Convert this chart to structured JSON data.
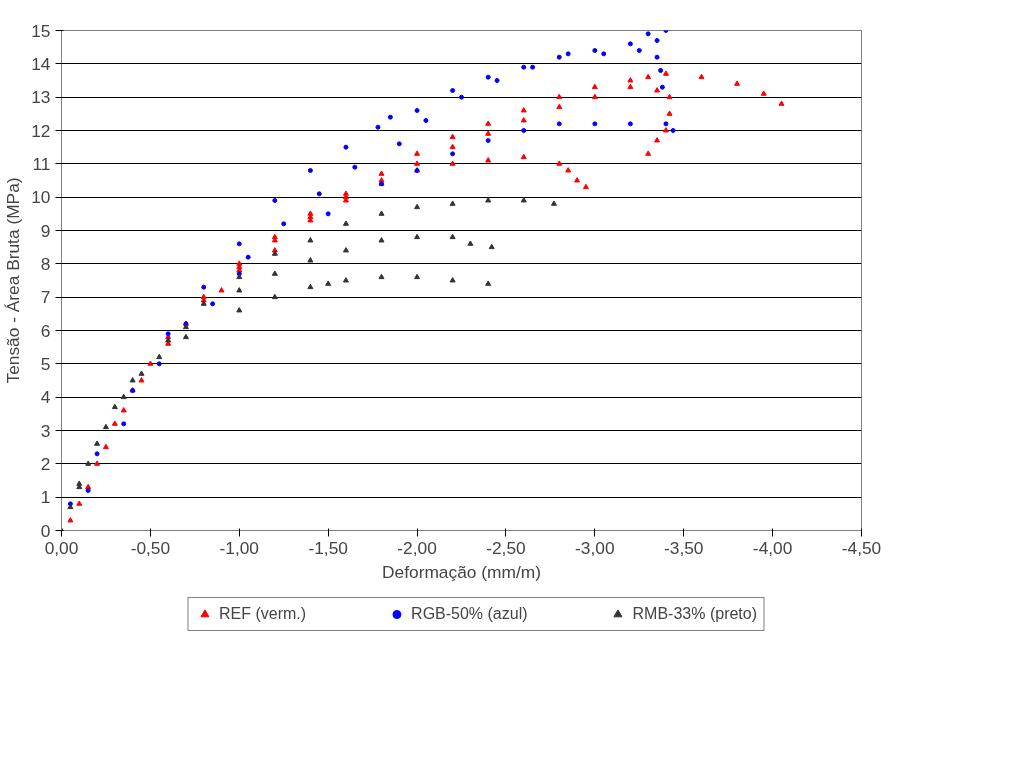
{
  "chart_data": {
    "type": "scatter",
    "xlabel": "Deformação (mm/m)",
    "ylabel": "Tensão - Área Bruta (MPa)",
    "xlim": [
      0,
      -4.5
    ],
    "ylim": [
      0,
      15
    ],
    "xticks": [
      {
        "value": 0,
        "label": "0,00"
      },
      {
        "value": -0.5,
        "label": "-0,50"
      },
      {
        "value": -1,
        "label": "-1,00"
      },
      {
        "value": -1.5,
        "label": "-1,50"
      },
      {
        "value": -2,
        "label": "-2,00"
      },
      {
        "value": -2.5,
        "label": "-2,50"
      },
      {
        "value": -3,
        "label": "-3,00"
      },
      {
        "value": -3.5,
        "label": "-3,50"
      },
      {
        "value": -4,
        "label": "-4,00"
      },
      {
        "value": -4.5,
        "label": "-4,50"
      }
    ],
    "yticks": [
      0,
      1,
      2,
      3,
      4,
      5,
      6,
      7,
      8,
      9,
      10,
      11,
      12,
      13,
      14,
      15
    ],
    "grid": "y",
    "legend": "bottom",
    "series": [
      {
        "name": "REF (verm.)",
        "color": "#ff0000",
        "marker": "triangle",
        "x": [
          -0.1,
          -0.2,
          -0.3,
          -0.4,
          -0.5,
          -0.6,
          -0.8,
          -1.0,
          -1.2,
          -1.4,
          -1.6,
          -1.8,
          -2.0,
          -2.2,
          -2.4,
          -2.6,
          -2.8,
          -3.0,
          -3.2,
          -3.3,
          -3.4,
          -3.6,
          -3.8,
          -3.95,
          -4.05,
          -0.05,
          -0.15,
          -0.25,
          -0.35,
          -0.45,
          -0.6,
          -0.8,
          -1.0,
          -1.2,
          -1.4,
          -1.6,
          -1.8,
          -2.0,
          -2.2,
          -2.4,
          -2.6,
          -2.8,
          -3.0,
          -3.2,
          -3.35,
          -3.42,
          -3.42,
          -3.4,
          -3.35,
          -3.3,
          -0.7,
          -0.9,
          -1.0,
          -1.2,
          -1.4,
          -1.6,
          -1.8,
          -2.0,
          -2.2,
          -2.4,
          -2.6,
          -2.8,
          -2.85,
          -2.9,
          -2.95
        ],
        "values": [
          0.8,
          2.0,
          3.2,
          4.2,
          5.0,
          5.8,
          7.0,
          8.0,
          8.8,
          9.5,
          10.1,
          10.7,
          11.3,
          11.8,
          12.2,
          12.6,
          13.0,
          13.3,
          13.5,
          13.6,
          13.7,
          13.6,
          13.4,
          13.1,
          12.8,
          0.3,
          1.3,
          2.5,
          3.6,
          4.5,
          5.6,
          6.9,
          7.9,
          8.7,
          9.4,
          10.0,
          10.5,
          11.0,
          11.5,
          11.9,
          12.3,
          12.7,
          13.0,
          13.3,
          13.2,
          13.0,
          12.5,
          12.0,
          11.7,
          11.3,
          6.2,
          7.2,
          7.8,
          8.4,
          9.3,
          9.9,
          10.4,
          10.8,
          11.0,
          11.1,
          11.2,
          11.0,
          10.8,
          10.5,
          10.3
        ]
      },
      {
        "name": "RGB-50% (azul)",
        "color": "#0000ff",
        "marker": "circle",
        "x": [
          -0.05,
          -0.2,
          -0.4,
          -0.6,
          -0.8,
          -1.0,
          -1.2,
          -1.4,
          -1.6,
          -1.78,
          -1.85,
          -2.0,
          -2.2,
          -2.4,
          -2.6,
          -2.8,
          -3.0,
          -3.2,
          -3.3,
          -3.35,
          -0.15,
          -0.35,
          -0.55,
          -0.85,
          -1.05,
          -1.25,
          -1.45,
          -1.65,
          -1.9,
          -2.05,
          -2.25,
          -2.45,
          -2.65,
          -2.85,
          -3.05,
          -3.25,
          -3.35,
          -3.37,
          -3.38,
          -3.4,
          -0.7,
          -1.0,
          -1.5,
          -1.8,
          -2.0,
          -2.2,
          -2.4,
          -2.6,
          -2.8,
          -3.0,
          -3.2,
          -3.4,
          -3.44
        ],
        "values": [
          0.8,
          2.3,
          4.2,
          5.9,
          7.3,
          8.6,
          9.9,
          10.8,
          11.5,
          12.1,
          12.4,
          12.6,
          13.2,
          13.6,
          13.9,
          14.2,
          14.4,
          14.6,
          14.9,
          14.7,
          1.2,
          3.2,
          5.0,
          6.8,
          8.2,
          9.2,
          10.1,
          10.9,
          11.6,
          12.3,
          13.0,
          13.5,
          13.9,
          14.3,
          14.3,
          14.4,
          14.2,
          13.8,
          13.3,
          15.0,
          6.2,
          7.7,
          9.5,
          10.4,
          10.8,
          11.3,
          11.7,
          12.0,
          12.2,
          12.2,
          12.2,
          12.2,
          12.0
        ]
      },
      {
        "name": "RMB-33% (preto)",
        "color": "#333333",
        "marker": "triangle",
        "x": [
          0,
          -0.1,
          -0.2,
          -0.3,
          -0.4,
          -0.6,
          -0.8,
          -1.0,
          -1.2,
          -1.4,
          -1.6,
          -1.8,
          -2.0,
          -2.2,
          -2.4,
          -2.6,
          -2.77,
          -0.05,
          -0.15,
          -0.25,
          -0.45,
          -0.7,
          -1.0,
          -1.2,
          -1.4,
          -1.6,
          -1.8,
          -2.0,
          -2.2,
          -2.3,
          -2.42,
          -0.1,
          -0.35,
          -0.55,
          -0.7,
          -1.0,
          -1.2,
          -1.4,
          -1.5,
          -1.6,
          -1.8,
          -2.0,
          -2.2,
          -2.4
        ],
        "values": [
          0,
          1.3,
          2.6,
          3.7,
          4.5,
          5.7,
          6.8,
          7.6,
          8.3,
          8.7,
          9.2,
          9.5,
          9.7,
          9.8,
          9.9,
          9.9,
          9.8,
          0.7,
          2.0,
          3.1,
          4.7,
          6.1,
          7.2,
          7.7,
          8.1,
          8.4,
          8.7,
          8.8,
          8.8,
          8.6,
          8.5,
          1.4,
          4.0,
          5.2,
          5.8,
          6.6,
          7.0,
          7.3,
          7.4,
          7.5,
          7.6,
          7.6,
          7.5,
          7.4
        ]
      }
    ]
  }
}
